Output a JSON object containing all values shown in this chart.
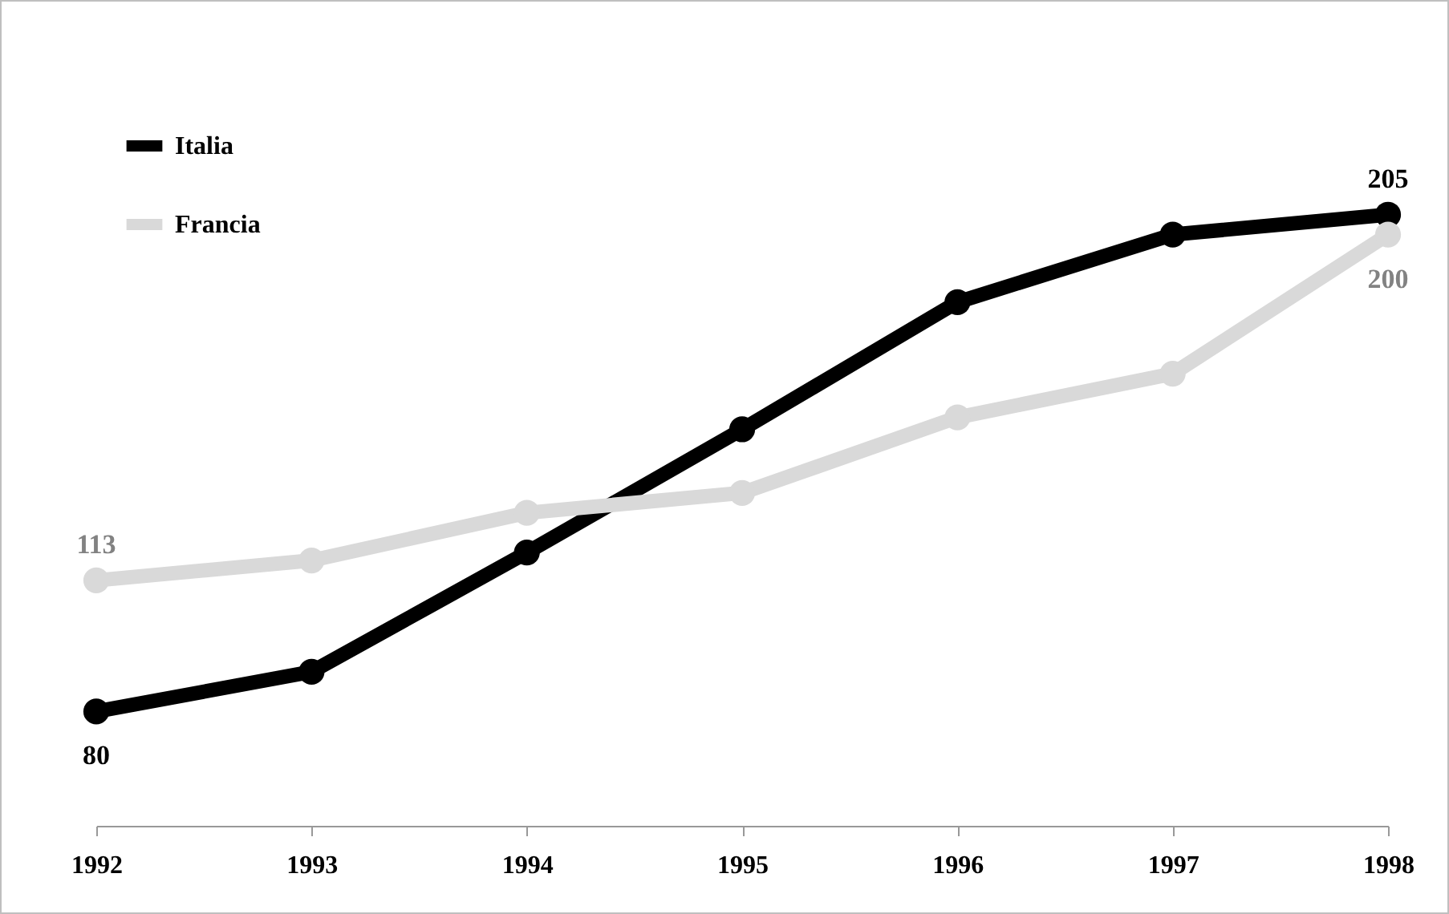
{
  "chart_data": {
    "type": "line",
    "categories": [
      "1992",
      "1993",
      "1994",
      "1995",
      "1996",
      "1997",
      "1998"
    ],
    "series": [
      {
        "name": "Italia",
        "color": "#000000",
        "values": [
          80,
          90,
          120,
          151,
          183,
          200,
          205
        ],
        "value_labels": [
          "80",
          null,
          null,
          null,
          null,
          null,
          "205"
        ]
      },
      {
        "name": "Francia",
        "color": "#d9d9d9",
        "values": [
          113,
          118,
          130,
          135,
          154,
          165,
          200
        ],
        "value_labels": [
          "113",
          null,
          null,
          null,
          null,
          null,
          "200"
        ]
      }
    ],
    "tick_labels": "x",
    "grid": false,
    "legend": "top left",
    "marker": "circle",
    "line_style": "solid"
  }
}
